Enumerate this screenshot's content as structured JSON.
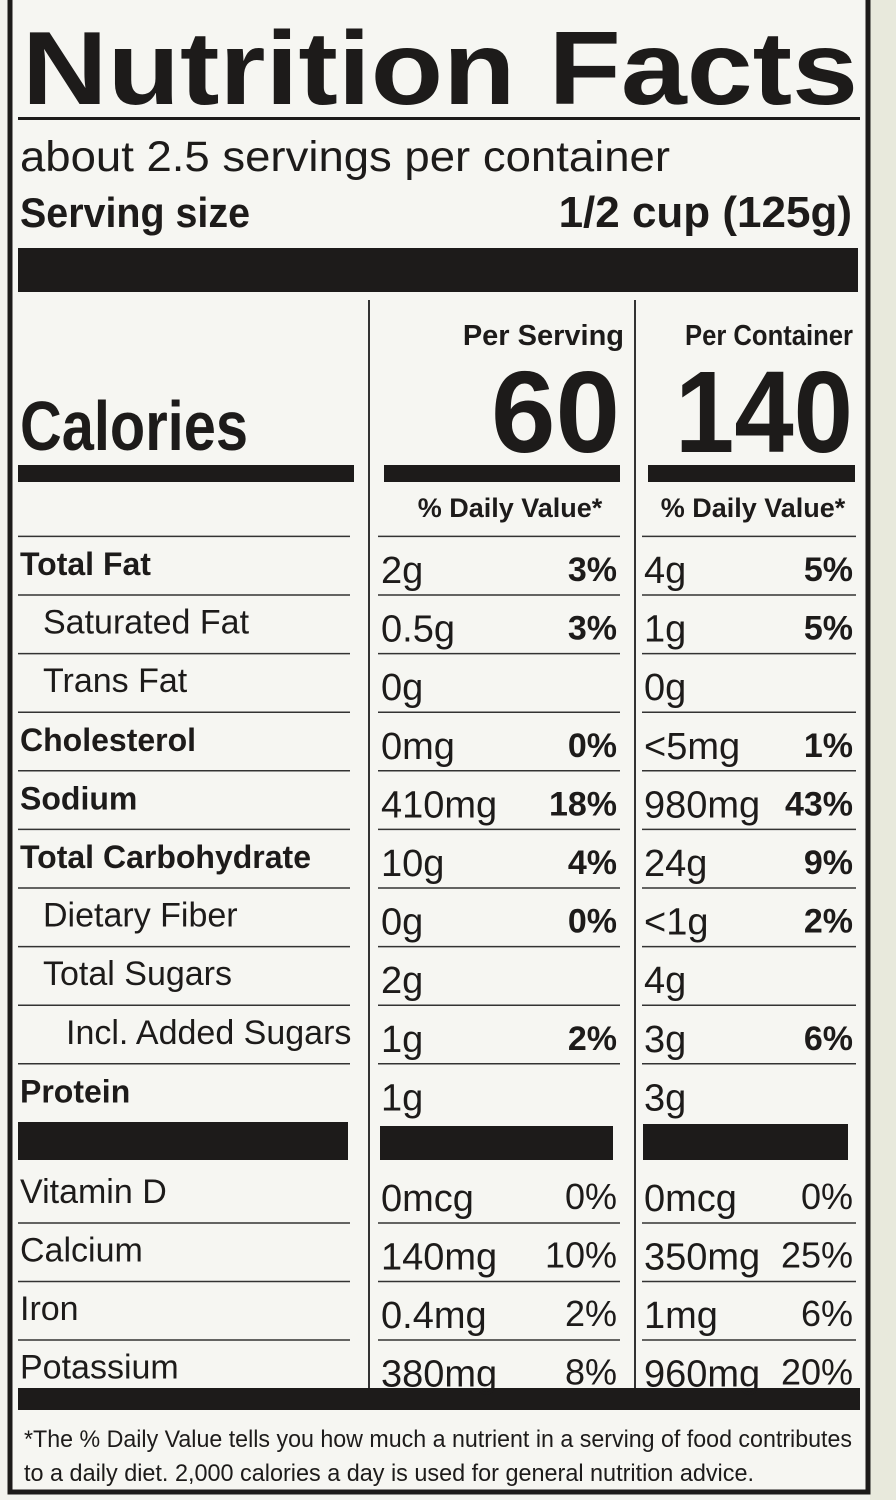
{
  "header": {
    "title": "Nutrition Facts",
    "servings": "about 2.5 servings per container",
    "serving_size_label": "Serving size",
    "serving_size_value": "1/2 cup (125g)"
  },
  "calories": {
    "label": "Calories",
    "per_serving_header": "Per Serving",
    "per_container_header": "Per Container",
    "per_serving": "60",
    "per_container": "140",
    "dv_header_serving": "% Daily Value*",
    "dv_header_container": "% Daily Value*"
  },
  "nutrients": [
    {
      "name": "Total Fat",
      "serving": {
        "amount": "2g",
        "dv": "3%"
      },
      "container": {
        "amount": "4g",
        "dv": "5%"
      }
    },
    {
      "name": "Saturated Fat",
      "serving": {
        "amount": "0.5g",
        "dv": "3%"
      },
      "container": {
        "amount": "1g",
        "dv": "5%"
      }
    },
    {
      "name": "Trans Fat",
      "serving": {
        "amount": "0g"
      },
      "container": {
        "amount": "0g"
      }
    },
    {
      "name": "Cholesterol",
      "serving": {
        "amount": "0mg",
        "dv": "0%"
      },
      "container": {
        "amount": "<5mg",
        "dv": "1%"
      }
    },
    {
      "name": "Sodium",
      "serving": {
        "amount": "410mg",
        "dv": "18%"
      },
      "container": {
        "amount": "980mg",
        "dv": "43%"
      }
    },
    {
      "name": "Total Carbohydrate",
      "serving": {
        "amount": "10g",
        "dv": "4%"
      },
      "container": {
        "amount": "24g",
        "dv": "9%"
      }
    },
    {
      "name": "Dietary Fiber",
      "serving": {
        "amount": "0g",
        "dv": "0%"
      },
      "container": {
        "amount": "<1g",
        "dv": "2%"
      }
    },
    {
      "name": "Total Sugars",
      "serving": {
        "amount": "2g"
      },
      "container": {
        "amount": "4g"
      }
    },
    {
      "name": "Incl. Added Sugars",
      "serving": {
        "amount": "1g",
        "dv": "2%"
      },
      "container": {
        "amount": "3g",
        "dv": "6%"
      }
    },
    {
      "name": "Protein",
      "serving": {
        "amount": "1g"
      },
      "container": {
        "amount": "3g"
      }
    }
  ],
  "vitamins": [
    {
      "name": "Vitamin D",
      "serving": {
        "amount": "0mcg",
        "dv": "0%"
      },
      "container": {
        "amount": "0mcg",
        "dv": "0%"
      }
    },
    {
      "name": "Calcium",
      "serving": {
        "amount": "140mg",
        "dv": "10%"
      },
      "container": {
        "amount": "350mg",
        "dv": "25%"
      }
    },
    {
      "name": "Iron",
      "serving": {
        "amount": "0.4mg",
        "dv": "2%"
      },
      "container": {
        "amount": "1mg",
        "dv": "6%"
      }
    },
    {
      "name": "Potassium",
      "serving": {
        "amount": "380mg",
        "dv": "8%"
      },
      "container": {
        "amount": "960mg",
        "dv": "20%"
      }
    }
  ],
  "footnote": [
    "*The % Daily Value tells you how much a nutrient in a serving of food contributes",
    "to a daily diet. 2,000 calories a day is used for general nutrition advice."
  ]
}
